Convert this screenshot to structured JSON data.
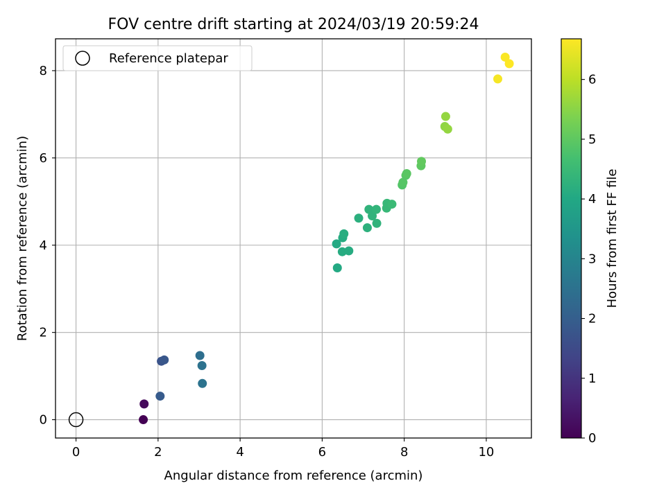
{
  "chart_data": {
    "type": "scatter",
    "title": "FOV centre drift starting at 2024/03/19 20:59:24",
    "xlabel": "Angular distance from reference (arcmin)",
    "ylabel": "Rotation from reference (arcmin)",
    "xlim": [
      -0.5,
      11.1
    ],
    "ylim": [
      -0.42,
      8.73
    ],
    "xticks": [
      0,
      2,
      4,
      6,
      8,
      10
    ],
    "yticks": [
      0,
      2,
      4,
      6,
      8
    ],
    "grid": true,
    "legend_position": "top-left",
    "legend": [
      {
        "label": "Reference platepar",
        "marker": "open-circle"
      }
    ],
    "reference_point": {
      "x": 0,
      "y": 0
    },
    "colorbar": {
      "label": "Hours from first FF file",
      "colormap": "viridis",
      "range": [
        0,
        6.68
      ],
      "ticks": [
        0,
        1,
        2,
        3,
        4,
        5,
        6
      ]
    },
    "points": [
      {
        "x": 1.64,
        "y": 0.0,
        "hours": 0.0
      },
      {
        "x": 1.66,
        "y": 0.36,
        "hours": 0.15
      },
      {
        "x": 2.05,
        "y": 0.54,
        "hours": 1.9
      },
      {
        "x": 2.08,
        "y": 1.34,
        "hours": 1.7
      },
      {
        "x": 2.15,
        "y": 1.37,
        "hours": 1.8
      },
      {
        "x": 3.02,
        "y": 1.47,
        "hours": 2.4
      },
      {
        "x": 3.07,
        "y": 1.24,
        "hours": 2.5
      },
      {
        "x": 3.08,
        "y": 0.83,
        "hours": 2.55
      },
      {
        "x": 6.37,
        "y": 3.48,
        "hours": 4.05
      },
      {
        "x": 6.35,
        "y": 4.03,
        "hours": 4.05
      },
      {
        "x": 6.49,
        "y": 3.85,
        "hours": 4.1
      },
      {
        "x": 6.5,
        "y": 4.17,
        "hours": 4.1
      },
      {
        "x": 6.53,
        "y": 4.26,
        "hours": 4.15
      },
      {
        "x": 6.65,
        "y": 3.87,
        "hours": 4.1
      },
      {
        "x": 6.89,
        "y": 4.62,
        "hours": 4.2
      },
      {
        "x": 7.1,
        "y": 4.4,
        "hours": 4.25
      },
      {
        "x": 7.14,
        "y": 4.82,
        "hours": 4.3
      },
      {
        "x": 7.22,
        "y": 4.67,
        "hours": 4.3
      },
      {
        "x": 7.32,
        "y": 4.82,
        "hours": 4.35
      },
      {
        "x": 7.33,
        "y": 4.5,
        "hours": 4.3
      },
      {
        "x": 7.57,
        "y": 4.85,
        "hours": 4.45
      },
      {
        "x": 7.58,
        "y": 4.96,
        "hours": 4.45
      },
      {
        "x": 7.7,
        "y": 4.94,
        "hours": 4.5
      },
      {
        "x": 7.95,
        "y": 5.38,
        "hours": 4.85
      },
      {
        "x": 7.97,
        "y": 5.44,
        "hours": 4.9
      },
      {
        "x": 8.04,
        "y": 5.6,
        "hours": 4.9
      },
      {
        "x": 8.06,
        "y": 5.64,
        "hours": 4.95
      },
      {
        "x": 8.41,
        "y": 5.82,
        "hours": 5.0
      },
      {
        "x": 8.42,
        "y": 5.92,
        "hours": 5.05
      },
      {
        "x": 8.99,
        "y": 6.72,
        "hours": 5.55
      },
      {
        "x": 9.01,
        "y": 6.95,
        "hours": 5.6
      },
      {
        "x": 9.06,
        "y": 6.66,
        "hours": 5.6
      },
      {
        "x": 10.28,
        "y": 7.81,
        "hours": 6.6
      },
      {
        "x": 10.46,
        "y": 8.31,
        "hours": 6.65
      },
      {
        "x": 10.56,
        "y": 8.16,
        "hours": 6.68
      }
    ]
  }
}
